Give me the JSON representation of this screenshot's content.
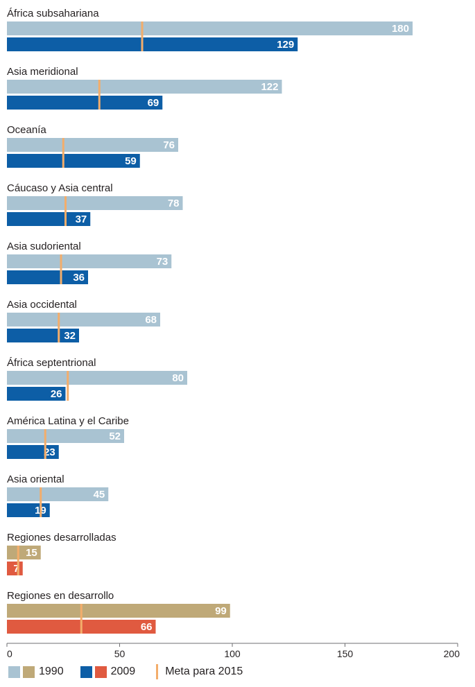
{
  "chart_data": {
    "type": "bar",
    "orientation": "horizontal",
    "categories": [
      "África subsahariana",
      "Asia meridional",
      "Oceanía",
      "Cáucaso y Asia central",
      "Asia sudoriental",
      "Asia occidental",
      "África septentrional",
      "América Latina y el Caribe",
      "Asia oriental",
      "Regiones desarrolladas",
      "Regiones en desarrollo"
    ],
    "series": [
      {
        "name": "1990",
        "values": [
          180,
          122,
          76,
          78,
          73,
          68,
          80,
          52,
          45,
          15,
          99
        ]
      },
      {
        "name": "2009",
        "values": [
          129,
          69,
          59,
          37,
          36,
          32,
          26,
          23,
          19,
          7,
          66
        ]
      },
      {
        "name": "Meta para 2015",
        "values": [
          60,
          41,
          25,
          26,
          24,
          23,
          27,
          17,
          15,
          5,
          33
        ]
      }
    ],
    "xlim": [
      0,
      200
    ],
    "xticks": [
      0,
      50,
      100,
      150,
      200
    ],
    "xlabel": "",
    "ylabel": "",
    "colors": {
      "regional_1990": "#a9c3d2",
      "regional_2009": "#0d5ea6",
      "aggregate_1990": "#bfa978",
      "aggregate_2009": "#e05a40",
      "target": "#f3ad6b",
      "axis": "#6d6e71"
    },
    "legend": {
      "position": "bottom-left",
      "entries": [
        "1990",
        "2009",
        "Meta para 2015"
      ]
    }
  }
}
